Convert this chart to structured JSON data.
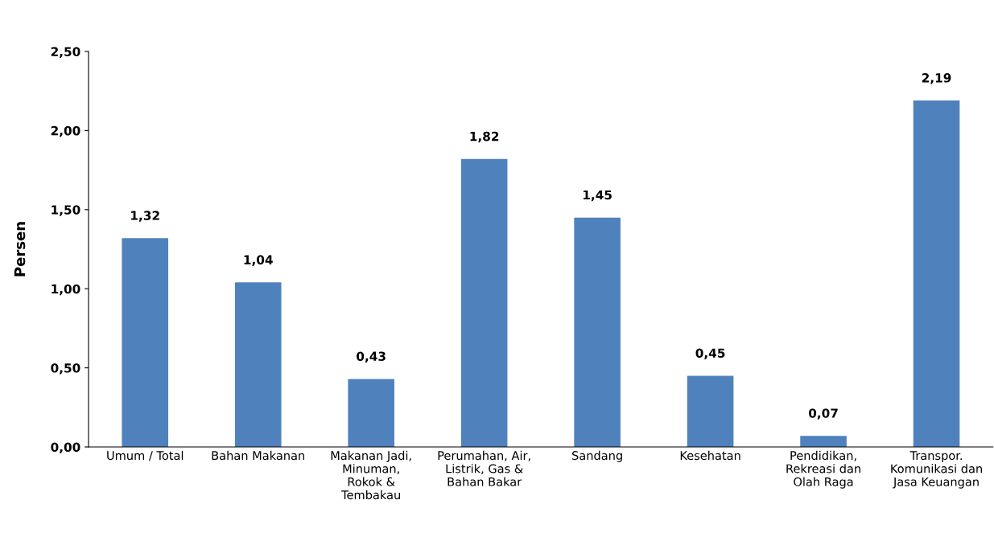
{
  "chart_data": {
    "type": "bar",
    "ylabel": "Persen",
    "categories": [
      "Umum / Total",
      "Bahan Makanan",
      "Makanan Jadi,\nMinuman,\nRokok &\nTembakau",
      "Perumahan, Air,\nListrik, Gas &\nBahan Bakar",
      "Sandang",
      "Kesehatan",
      "Pendidikan,\nRekreasi dan\nOlah Raga",
      "Transpor.\nKomunikasi dan\nJasa Keuangan"
    ],
    "values": [
      1.32,
      1.04,
      0.43,
      1.82,
      1.45,
      0.45,
      0.07,
      2.19
    ],
    "value_labels": [
      "1,32",
      "1,04",
      "0,43",
      "1,82",
      "1,45",
      "0,45",
      "0,07",
      "2,19"
    ],
    "color": "#4f81bd",
    "ylim": [
      0,
      2.5
    ],
    "yticks": [
      {
        "value": 0,
        "label": "0,00"
      },
      {
        "value": 0.5,
        "label": "0,50"
      },
      {
        "value": 1,
        "label": "1,00"
      },
      {
        "value": 1.5,
        "label": "1,50"
      },
      {
        "value": 2,
        "label": "2,00"
      },
      {
        "value": 2.5,
        "label": "2,50"
      }
    ],
    "grid": false,
    "legend": false
  }
}
